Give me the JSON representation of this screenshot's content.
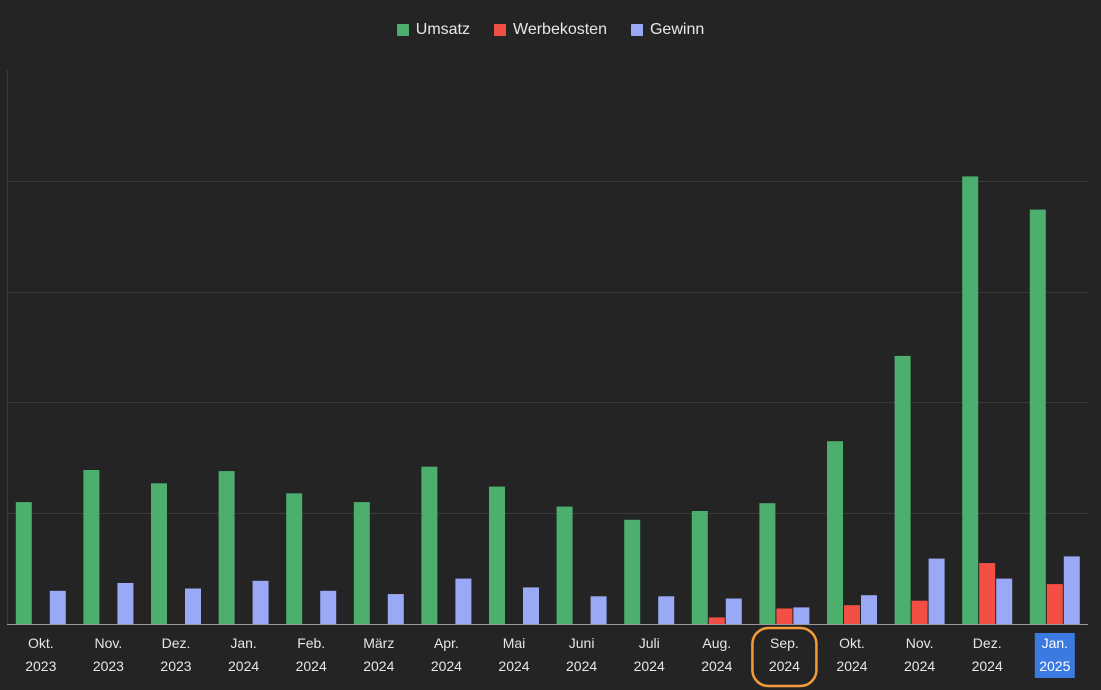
{
  "chart_data": {
    "type": "bar",
    "categories": [
      [
        "Okt.",
        "2023"
      ],
      [
        "Nov.",
        "2023"
      ],
      [
        "Dez.",
        "2023"
      ],
      [
        "Jan.",
        "2024"
      ],
      [
        "Feb.",
        "2024"
      ],
      [
        "März",
        "2024"
      ],
      [
        "Apr.",
        "2024"
      ],
      [
        "Mai",
        "2024"
      ],
      [
        "Juni",
        "2024"
      ],
      [
        "Juli",
        "2024"
      ],
      [
        "Aug.",
        "2024"
      ],
      [
        "Sep.",
        "2024"
      ],
      [
        "Okt.",
        "2024"
      ],
      [
        "Nov.",
        "2024"
      ],
      [
        "Dez.",
        "2024"
      ],
      [
        "Jan.",
        "2025"
      ]
    ],
    "series": [
      {
        "name": "Umsatz",
        "color": "#4caf6e",
        "values": [
          1.1,
          1.39,
          1.27,
          1.38,
          1.18,
          1.1,
          1.42,
          1.24,
          1.06,
          0.94,
          1.02,
          1.09,
          1.65,
          2.42,
          4.04,
          3.74
        ]
      },
      {
        "name": "Werbekosten",
        "color": "#f44f44",
        "values": [
          0,
          0,
          0,
          0,
          0,
          0,
          0,
          0,
          0,
          0,
          0.06,
          0.14,
          0.17,
          0.21,
          0.55,
          0.36
        ]
      },
      {
        "name": "Gewinn",
        "color": "#9aa9f5",
        "values": [
          0.3,
          0.37,
          0.32,
          0.39,
          0.3,
          0.27,
          0.41,
          0.33,
          0.25,
          0.25,
          0.23,
          0.15,
          0.26,
          0.59,
          0.41,
          0.61
        ]
      }
    ],
    "ylim": [
      0,
      5
    ],
    "grid": true,
    "legend_position": "top-center",
    "highlighted_category_index": 15,
    "circled_category_index": 11,
    "highlight_color": "#3b7ae0",
    "circle_color": "#f39c3c"
  }
}
